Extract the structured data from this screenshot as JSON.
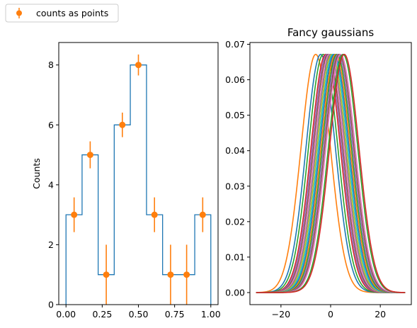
{
  "legend": {
    "label": "counts as points",
    "color": "#ff7f0e",
    "placement": "top-left (outside plots)"
  },
  "chart_data": [
    {
      "type": "bar",
      "subtype": "step histogram with error bars",
      "title": "",
      "xlabel": "",
      "ylabel": "Counts",
      "bin_edges": [
        0.0,
        0.111,
        0.222,
        0.333,
        0.444,
        0.556,
        0.667,
        0.778,
        0.889,
        1.0
      ],
      "counts": [
        3,
        5,
        1,
        6,
        8,
        3,
        1,
        1,
        3
      ],
      "step_color": "#1f77b4",
      "points": {
        "name": "counts as points",
        "color": "#ff7f0e",
        "x": [
          0.056,
          0.167,
          0.278,
          0.389,
          0.5,
          0.611,
          0.722,
          0.833,
          0.944
        ],
        "y": [
          3,
          5,
          1,
          6,
          8,
          3,
          1,
          1,
          3
        ],
        "yerr": [
          0.58,
          0.45,
          1.0,
          0.41,
          0.35,
          0.58,
          1.0,
          1.0,
          0.58
        ]
      },
      "xlim": [
        -0.05,
        1.05
      ],
      "ylim": [
        0,
        8.75
      ],
      "xticks": [
        0.0,
        0.25,
        0.5,
        0.75,
        1.0
      ],
      "xtick_labels": [
        "0.00",
        "0.25",
        "0.50",
        "0.75",
        "1.00"
      ],
      "yticks": [
        0,
        2,
        4,
        6,
        8
      ],
      "ytick_labels": [
        "0",
        "2",
        "4",
        "6",
        "8"
      ],
      "grid": false
    },
    {
      "type": "line",
      "title": "Fancy gaussians",
      "xlabel": "",
      "ylabel": "",
      "sigma": 5.94,
      "x_range": [
        -30,
        30
      ],
      "means": [
        -6.0,
        -4.0,
        -3.0,
        -2.0,
        -1.5,
        -1.0,
        -0.5,
        0.0,
        0.5,
        1.0,
        1.5,
        2.0,
        2.5,
        3.0,
        3.5,
        4.0,
        5.0,
        5.5
      ],
      "series_colors": [
        "#ff7f0e",
        "#1f77b4",
        "#2ca02c",
        "#d62728",
        "#9467bd",
        "#8c564b",
        "#e377c2",
        "#7f7f7f",
        "#bcbd22",
        "#17becf",
        "#1f77b4",
        "#ff7f0e",
        "#2ca02c",
        "#9467bd",
        "#8c564b",
        "#e377c2",
        "#2ca02c",
        "#d62728"
      ],
      "xlim": [
        -32.5,
        32.5
      ],
      "ylim": [
        -0.0034,
        0.0705
      ],
      "xticks": [
        -20,
        0,
        20
      ],
      "xtick_labels": [
        "−20",
        "0",
        "20"
      ],
      "yticks": [
        0.0,
        0.01,
        0.02,
        0.03,
        0.04,
        0.05,
        0.06,
        0.07
      ],
      "ytick_labels": [
        "0.00",
        "0.01",
        "0.02",
        "0.03",
        "0.04",
        "0.05",
        "0.06",
        "0.07"
      ],
      "grid": false
    }
  ]
}
